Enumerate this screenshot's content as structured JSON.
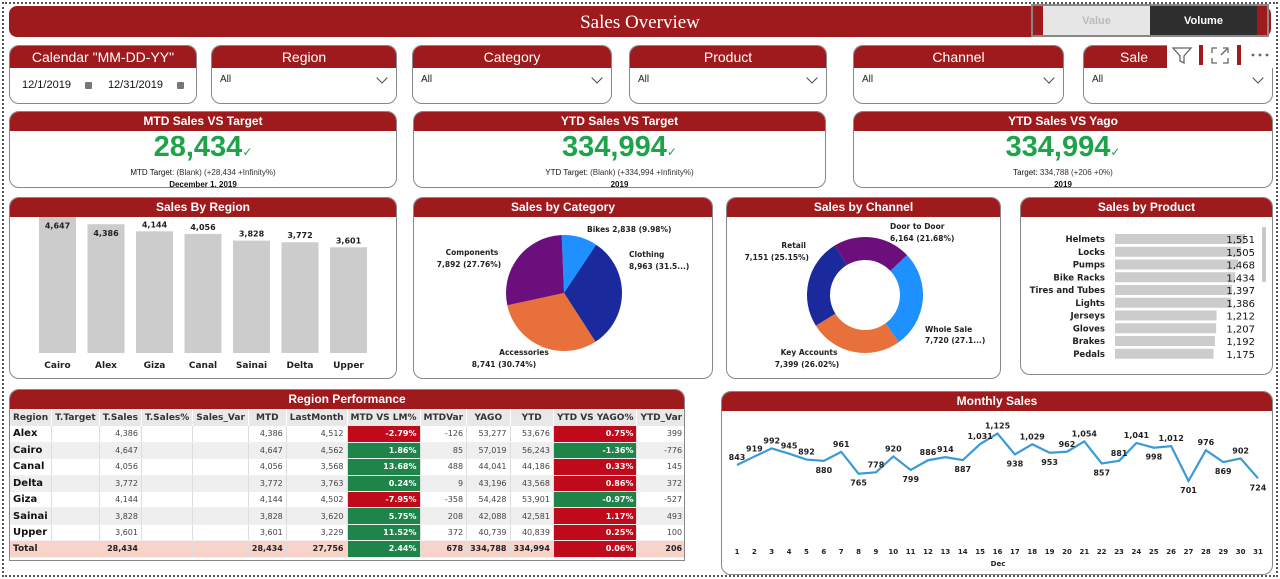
{
  "header": {
    "title": "Sales Overview",
    "toggle": {
      "options": [
        "Value",
        "Volume"
      ],
      "selected": "Volume"
    }
  },
  "slicers": {
    "calendar": {
      "title": "Calendar \"MM-DD-YY\"",
      "start": "12/1/2019",
      "end": "12/31/2019"
    },
    "region": {
      "title": "Region",
      "value": "All"
    },
    "category": {
      "title": "Category",
      "value": "All"
    },
    "product": {
      "title": "Product",
      "value": "All"
    },
    "channel": {
      "title": "Channel",
      "value": "All"
    },
    "last": {
      "title": "Sale",
      "value": "All"
    }
  },
  "visual_header_icons": [
    "filter-icon",
    "focus-mode-icon",
    "more-options-icon"
  ],
  "kpis": {
    "mtd": {
      "title": "MTD Sales VS Target",
      "value": "28,434",
      "check": "✓",
      "target_label": "MTD Target:",
      "target_text": "(Blank) (+28,434 +Infinity%)",
      "date": "December 1, 2019"
    },
    "ytd": {
      "title": "YTD Sales VS Target",
      "value": "334,994",
      "check": "✓",
      "target_label": "YTD Target:",
      "target_text": "(Blank) (+334,994 +Infinity%)",
      "date": "2019"
    },
    "yago": {
      "title": "YTD Sales VS Yago",
      "value": "334,994",
      "check": "✓",
      "target_label": "Target:",
      "target_text": "334,788 (+206 +0%)",
      "date": "2019"
    }
  },
  "colors": {
    "brand_red": "#9e1a1d",
    "kpi_green": "#1fa34a",
    "positive": "#1e8449",
    "negative": "#c0091b",
    "line": "#3a9ad9"
  },
  "chart_data": [
    {
      "id": "region",
      "type": "bar",
      "title": "Sales By Region",
      "categories": [
        "Cairo",
        "Alex",
        "Giza",
        "Canal",
        "Sainai",
        "Delta",
        "Upper"
      ],
      "values": [
        4647,
        4386,
        4144,
        4056,
        3828,
        3772,
        3601
      ],
      "labels": [
        "4,647",
        "4,386",
        "4,144",
        "4,056",
        "3,828",
        "3,772",
        "3,601"
      ],
      "ylim": [
        0,
        4700
      ],
      "color": "#cccccc"
    },
    {
      "id": "category",
      "type": "pie",
      "title": "Sales by Category",
      "slices": [
        {
          "name": "Bikes",
          "value": 2838,
          "pct": "9.98%",
          "color": "#1e90ff",
          "label": "Bikes 2,838 (9.98%)"
        },
        {
          "name": "Clothing",
          "value": 8963,
          "pct": "31.5...",
          "color": "#1a2a9c",
          "label_name": "Clothing",
          "label_val": "8,963 (31.5...)"
        },
        {
          "name": "Accessories",
          "value": 8741,
          "pct": "30.74%",
          "color": "#e8703a",
          "label_name": "Accessories",
          "label_val": "8,741 (30.74%)"
        },
        {
          "name": "Components",
          "value": 7892,
          "pct": "27.76%",
          "color": "#6b0f7d",
          "label_name": "Components",
          "label_val": "7,892 (27.76%)"
        }
      ]
    },
    {
      "id": "channel",
      "type": "pie",
      "donut": true,
      "title": "Sales by Channel",
      "slices": [
        {
          "name": "Door to Door",
          "value": 6164,
          "pct": "21.68%",
          "color": "#6b0f7d",
          "label_val": "6,164 (21.68%)"
        },
        {
          "name": "Whole Sale",
          "value": 7720,
          "pct": "27.1...",
          "color": "#1e90ff",
          "label_val": "7,720 (27.1...)"
        },
        {
          "name": "Key Accounts",
          "value": 7399,
          "pct": "26.02%",
          "color": "#e8703a",
          "label_val": "7,399 (26.02%)"
        },
        {
          "name": "Retail",
          "value": 7151,
          "pct": "25.15%",
          "color": "#1a2a9c",
          "label_val": "7,151 (25.15%)"
        }
      ]
    },
    {
      "id": "product",
      "type": "bar",
      "orientation": "horizontal",
      "title": "Sales by Product",
      "categories": [
        "Helmets",
        "Locks",
        "Pumps",
        "Bike Racks",
        "Tires and Tubes",
        "Lights",
        "Jerseys",
        "Gloves",
        "Brakes",
        "Pedals"
      ],
      "values": [
        1551,
        1505,
        1468,
        1434,
        1397,
        1386,
        1212,
        1207,
        1192,
        1175
      ],
      "labels": [
        "1,551",
        "1,505",
        "1,468",
        "1,434",
        "1,397",
        "1,386",
        "1,212",
        "1,207",
        "1,192",
        "1,175"
      ],
      "xlim": [
        0,
        1551
      ],
      "color": "#cccccc"
    },
    {
      "id": "monthly",
      "type": "line",
      "title": "Monthly Sales",
      "x": [
        1,
        2,
        3,
        4,
        5,
        6,
        7,
        8,
        9,
        10,
        11,
        12,
        13,
        14,
        15,
        16,
        17,
        18,
        19,
        20,
        21,
        22,
        23,
        24,
        25,
        26,
        27,
        28,
        29,
        30,
        31
      ],
      "values": [
        843,
        919,
        992,
        945,
        892,
        880,
        961,
        765,
        778,
        920,
        799,
        886,
        914,
        887,
        1031,
        1125,
        938,
        1029,
        953,
        962,
        1054,
        857,
        881,
        1041,
        998,
        1012,
        701,
        976,
        869,
        902,
        724
      ],
      "labels": [
        "843",
        "919",
        "992",
        "945",
        "892",
        "880",
        "961",
        "765",
        "778",
        "920",
        "799",
        "886",
        "914",
        "887",
        "1,031",
        "1,125",
        "938",
        "1,029",
        "953",
        "962",
        "1,054",
        "857",
        "881",
        "1,041",
        "998",
        "1,012",
        "701",
        "976",
        "869",
        "902",
        "724"
      ],
      "xlabel_month": "Dec",
      "xlabel_year": "2019",
      "color": "#3a9ad9"
    }
  ],
  "region_table": {
    "title": "Region Performance",
    "columns": [
      "Region",
      "T.Target",
      "T.Sales",
      "T.Sales%",
      "Sales_Var",
      "MTD",
      "LastMonth",
      "MTD VS LM%",
      "MTDVar",
      "YAGO",
      "YTD",
      "YTD VS YAGO%",
      "YTD_Var"
    ],
    "rows": [
      {
        "region": "Alex",
        "ttarget": "",
        "tsales": "4,386",
        "tsalespct": "",
        "salesvar": "",
        "mtd": "4,386",
        "lastmonth": "4,512",
        "mtdvslm": "-2.79%",
        "mtdvslm_status": "neg",
        "mtdvar": "-126",
        "yago": "53,277",
        "ytd": "53,676",
        "ytdvsyago": "0.75%",
        "ytdvsyago_status": "neg",
        "ytdvar": "399"
      },
      {
        "region": "Cairo",
        "ttarget": "",
        "tsales": "4,647",
        "tsalespct": "",
        "salesvar": "",
        "mtd": "4,647",
        "lastmonth": "4,562",
        "mtdvslm": "1.86%",
        "mtdvslm_status": "pos",
        "mtdvar": "85",
        "yago": "57,019",
        "ytd": "56,243",
        "ytdvsyago": "-1.36%",
        "ytdvsyago_status": "pos",
        "ytdvar": "-776"
      },
      {
        "region": "Canal",
        "ttarget": "",
        "tsales": "4,056",
        "tsalespct": "",
        "salesvar": "",
        "mtd": "4,056",
        "lastmonth": "3,568",
        "mtdvslm": "13.68%",
        "mtdvslm_status": "pos",
        "mtdvar": "488",
        "yago": "44,041",
        "ytd": "44,186",
        "ytdvsyago": "0.33%",
        "ytdvsyago_status": "neg",
        "ytdvar": "145"
      },
      {
        "region": "Delta",
        "ttarget": "",
        "tsales": "3,772",
        "tsalespct": "",
        "salesvar": "",
        "mtd": "3,772",
        "lastmonth": "3,763",
        "mtdvslm": "0.24%",
        "mtdvslm_status": "pos",
        "mtdvar": "9",
        "yago": "43,196",
        "ytd": "43,568",
        "ytdvsyago": "0.86%",
        "ytdvsyago_status": "neg",
        "ytdvar": "372"
      },
      {
        "region": "Giza",
        "ttarget": "",
        "tsales": "4,144",
        "tsalespct": "",
        "salesvar": "",
        "mtd": "4,144",
        "lastmonth": "4,502",
        "mtdvslm": "-7.95%",
        "mtdvslm_status": "neg",
        "mtdvar": "-358",
        "yago": "54,428",
        "ytd": "53,901",
        "ytdvsyago": "-0.97%",
        "ytdvsyago_status": "pos",
        "ytdvar": "-527"
      },
      {
        "region": "Sainai",
        "ttarget": "",
        "tsales": "3,828",
        "tsalespct": "",
        "salesvar": "",
        "mtd": "3,828",
        "lastmonth": "3,620",
        "mtdvslm": "5.75%",
        "mtdvslm_status": "pos",
        "mtdvar": "208",
        "yago": "42,088",
        "ytd": "42,581",
        "ytdvsyago": "1.17%",
        "ytdvsyago_status": "neg",
        "ytdvar": "493"
      },
      {
        "region": "Upper",
        "ttarget": "",
        "tsales": "3,601",
        "tsalespct": "",
        "salesvar": "",
        "mtd": "3,601",
        "lastmonth": "3,229",
        "mtdvslm": "11.52%",
        "mtdvslm_status": "pos",
        "mtdvar": "372",
        "yago": "40,739",
        "ytd": "40,839",
        "ytdvsyago": "0.25%",
        "ytdvsyago_status": "neg",
        "ytdvar": "100"
      }
    ],
    "total": {
      "region": "Total",
      "ttarget": "",
      "tsales": "28,434",
      "tsalespct": "",
      "salesvar": "",
      "mtd": "28,434",
      "lastmonth": "27,756",
      "mtdvslm": "2.44%",
      "mtdvslm_status": "pos",
      "mtdvar": "678",
      "yago": "334,788",
      "ytd": "334,994",
      "ytdvsyago": "0.06%",
      "ytdvsyago_status": "neg",
      "ytdvar": "206"
    }
  }
}
